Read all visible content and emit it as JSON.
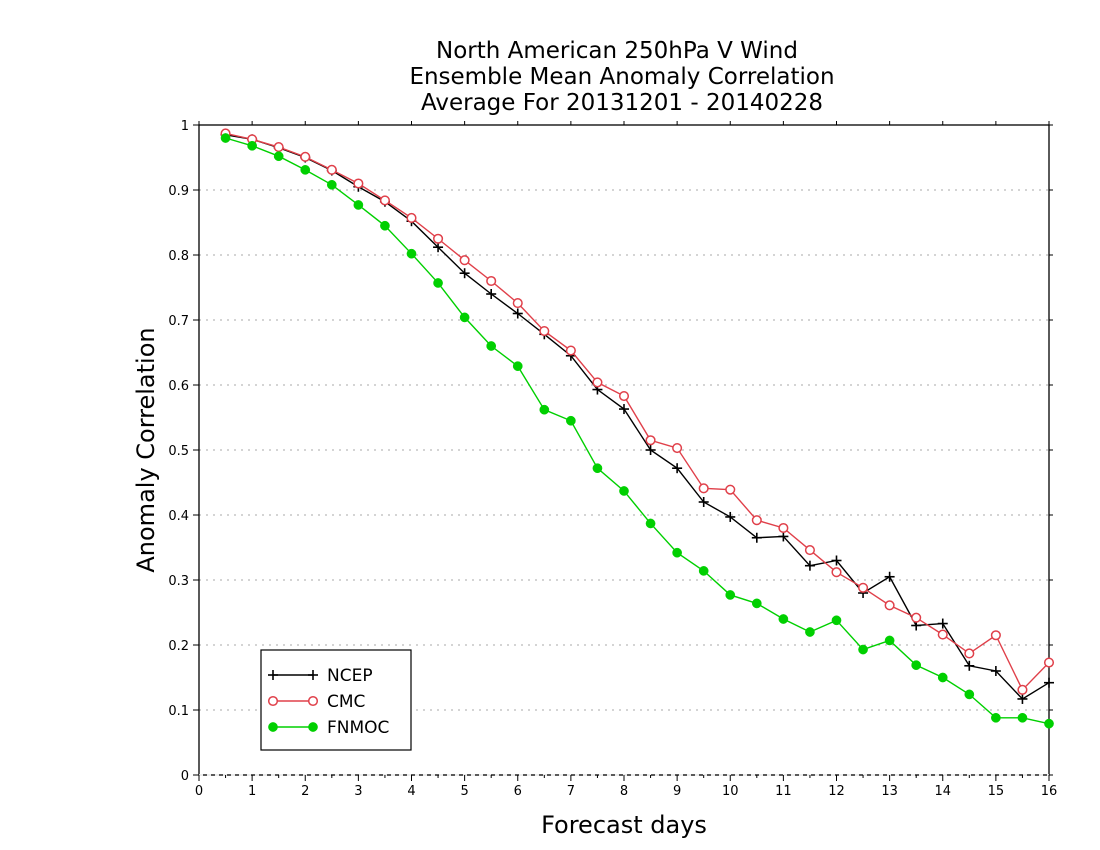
{
  "chart_data": {
    "type": "line",
    "title": [
      "North American 250hPa V Wind",
      "Ensemble Mean Anomaly Correlation",
      "Average For 20131201 - 20140228"
    ],
    "xlabel": "Forecast days",
    "ylabel": "Anomaly Correlation",
    "xlim": [
      0,
      16
    ],
    "ylim": [
      0,
      1
    ],
    "xticks": [
      "0",
      "1",
      "2",
      "3",
      "4",
      "5",
      "6",
      "7",
      "8",
      "9",
      "10",
      "11",
      "12",
      "13",
      "14",
      "15",
      "16"
    ],
    "yticks": [
      "0",
      "0.1",
      "0.2",
      "0.3",
      "0.4",
      "0.5",
      "0.6",
      "0.7",
      "0.8",
      "0.9",
      "1"
    ],
    "grid": "horizontal dotted",
    "legend_position": "bottom-left",
    "x": [
      0.5,
      1,
      1.5,
      2,
      2.5,
      3,
      3.5,
      4,
      4.5,
      5,
      5.5,
      6,
      6.5,
      7,
      7.5,
      8,
      8.5,
      9,
      9.5,
      10,
      10.5,
      11,
      11.5,
      12,
      12.5,
      13,
      13.5,
      14,
      14.5,
      15,
      15.5,
      16
    ],
    "series": [
      {
        "name": "NCEP",
        "color": "#000000",
        "marker": "plus",
        "values": [
          0.985,
          0.978,
          0.965,
          0.95,
          0.93,
          0.905,
          0.882,
          0.852,
          0.812,
          0.772,
          0.74,
          0.71,
          0.678,
          0.645,
          0.593,
          0.563,
          0.5,
          0.472,
          0.42,
          0.397,
          0.365,
          0.367,
          0.322,
          0.33,
          0.28,
          0.305,
          0.23,
          0.233,
          0.168,
          0.16,
          0.117,
          0.142
        ]
      },
      {
        "name": "CMC",
        "color": "#e0404a",
        "marker": "open-circle",
        "values": [
          0.987,
          0.978,
          0.966,
          0.951,
          0.931,
          0.91,
          0.884,
          0.857,
          0.825,
          0.792,
          0.76,
          0.726,
          0.683,
          0.653,
          0.604,
          0.583,
          0.515,
          0.503,
          0.441,
          0.439,
          0.392,
          0.38,
          0.346,
          0.312,
          0.288,
          0.261,
          0.242,
          0.216,
          0.187,
          0.215,
          0.131,
          0.173
        ]
      },
      {
        "name": "FNMOC",
        "color": "#00d000",
        "marker": "filled-circle",
        "values": [
          0.98,
          0.968,
          0.952,
          0.931,
          0.908,
          0.877,
          0.845,
          0.802,
          0.757,
          0.704,
          0.66,
          0.629,
          0.562,
          0.545,
          0.472,
          0.437,
          0.387,
          0.342,
          0.314,
          0.277,
          0.264,
          0.24,
          0.22,
          0.238,
          0.193,
          0.207,
          0.169,
          0.15,
          0.124,
          0.088,
          0.088,
          0.079
        ]
      }
    ]
  }
}
